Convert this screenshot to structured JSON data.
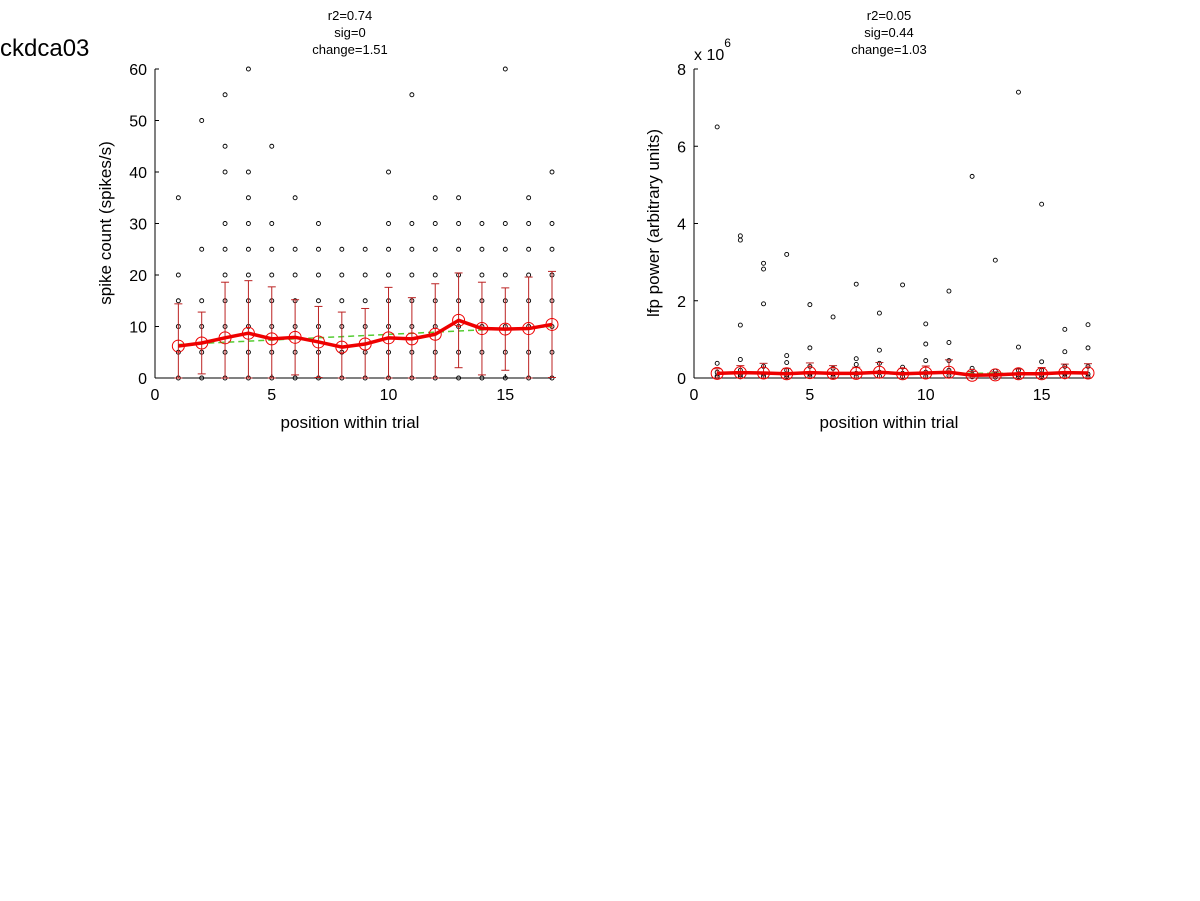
{
  "figure_title": "ckdca03",
  "chart_data": [
    {
      "type": "scatter",
      "stats": {
        "r2": "r2=0.74",
        "sig": "sig=0",
        "change": "change=1.51"
      },
      "xlabel": "position within trial",
      "ylabel": "spike count (spikes/s)",
      "xlim": [
        0,
        17
      ],
      "ylim": [
        0,
        60
      ],
      "xticks": [
        0,
        5,
        10,
        15
      ],
      "yticks": [
        0,
        10,
        20,
        30,
        40,
        50,
        60
      ],
      "scatter_points": [
        [
          1,
          0
        ],
        [
          1,
          5
        ],
        [
          1,
          10
        ],
        [
          1,
          15
        ],
        [
          1,
          20
        ],
        [
          1,
          35
        ],
        [
          2,
          0
        ],
        [
          2,
          5
        ],
        [
          2,
          10
        ],
        [
          2,
          15
        ],
        [
          2,
          25
        ],
        [
          2,
          50
        ],
        [
          3,
          0
        ],
        [
          3,
          5
        ],
        [
          3,
          10
        ],
        [
          3,
          15
        ],
        [
          3,
          20
        ],
        [
          3,
          25
        ],
        [
          3,
          30
        ],
        [
          3,
          40
        ],
        [
          3,
          45
        ],
        [
          3,
          55
        ],
        [
          4,
          0
        ],
        [
          4,
          5
        ],
        [
          4,
          10
        ],
        [
          4,
          15
        ],
        [
          4,
          20
        ],
        [
          4,
          25
        ],
        [
          4,
          30
        ],
        [
          4,
          35
        ],
        [
          4,
          40
        ],
        [
          4,
          60
        ],
        [
          5,
          0
        ],
        [
          5,
          5
        ],
        [
          5,
          10
        ],
        [
          5,
          15
        ],
        [
          5,
          20
        ],
        [
          5,
          25
        ],
        [
          5,
          30
        ],
        [
          5,
          45
        ],
        [
          6,
          0
        ],
        [
          6,
          5
        ],
        [
          6,
          10
        ],
        [
          6,
          15
        ],
        [
          6,
          20
        ],
        [
          6,
          25
        ],
        [
          6,
          35
        ],
        [
          7,
          0
        ],
        [
          7,
          5
        ],
        [
          7,
          10
        ],
        [
          7,
          15
        ],
        [
          7,
          20
        ],
        [
          7,
          25
        ],
        [
          7,
          30
        ],
        [
          8,
          0
        ],
        [
          8,
          5
        ],
        [
          8,
          10
        ],
        [
          8,
          15
        ],
        [
          8,
          20
        ],
        [
          8,
          25
        ],
        [
          9,
          0
        ],
        [
          9,
          5
        ],
        [
          9,
          10
        ],
        [
          9,
          15
        ],
        [
          9,
          20
        ],
        [
          9,
          25
        ],
        [
          10,
          0
        ],
        [
          10,
          5
        ],
        [
          10,
          10
        ],
        [
          10,
          15
        ],
        [
          10,
          20
        ],
        [
          10,
          25
        ],
        [
          10,
          30
        ],
        [
          10,
          40
        ],
        [
          11,
          0
        ],
        [
          11,
          5
        ],
        [
          11,
          10
        ],
        [
          11,
          15
        ],
        [
          11,
          20
        ],
        [
          11,
          25
        ],
        [
          11,
          30
        ],
        [
          11,
          55
        ],
        [
          12,
          0
        ],
        [
          12,
          5
        ],
        [
          12,
          10
        ],
        [
          12,
          15
        ],
        [
          12,
          20
        ],
        [
          12,
          25
        ],
        [
          12,
          30
        ],
        [
          12,
          35
        ],
        [
          13,
          0
        ],
        [
          13,
          5
        ],
        [
          13,
          10
        ],
        [
          13,
          15
        ],
        [
          13,
          20
        ],
        [
          13,
          25
        ],
        [
          13,
          30
        ],
        [
          13,
          35
        ],
        [
          14,
          0
        ],
        [
          14,
          5
        ],
        [
          14,
          10
        ],
        [
          14,
          15
        ],
        [
          14,
          20
        ],
        [
          14,
          25
        ],
        [
          14,
          30
        ],
        [
          15,
          0
        ],
        [
          15,
          5
        ],
        [
          15,
          10
        ],
        [
          15,
          15
        ],
        [
          15,
          20
        ],
        [
          15,
          25
        ],
        [
          15,
          30
        ],
        [
          15,
          60
        ],
        [
          16,
          0
        ],
        [
          16,
          5
        ],
        [
          16,
          10
        ],
        [
          16,
          15
        ],
        [
          16,
          20
        ],
        [
          16,
          25
        ],
        [
          16,
          30
        ],
        [
          16,
          35
        ],
        [
          17,
          0
        ],
        [
          17,
          5
        ],
        [
          17,
          10
        ],
        [
          17,
          15
        ],
        [
          17,
          20
        ],
        [
          17,
          25
        ],
        [
          17,
          30
        ],
        [
          17,
          40
        ]
      ],
      "mean_x": [
        1,
        2,
        3,
        4,
        5,
        6,
        7,
        8,
        9,
        10,
        11,
        12,
        13,
        14,
        15,
        16,
        17
      ],
      "mean_values": [
        6.2,
        6.8,
        7.8,
        8.7,
        7.6,
        7.9,
        7.0,
        6.0,
        6.6,
        7.8,
        7.6,
        8.5,
        11.2,
        9.6,
        9.5,
        9.6,
        10.4
      ],
      "error": [
        8.2,
        6.0,
        10.8,
        10.2,
        10.1,
        7.3,
        6.9,
        6.8,
        6.9,
        9.8,
        8.0,
        9.8,
        9.2,
        9.0,
        8.0,
        10.0,
        10.3
      ],
      "fit_line": [
        [
          1,
          6.5
        ],
        [
          17,
          10.0
        ]
      ],
      "colors": {
        "mean": "#ee0000",
        "error": "#bb2222",
        "fit": "#55cc33",
        "points": "#000000"
      }
    },
    {
      "type": "scatter",
      "stats": {
        "r2": "r2=0.05",
        "sig": "sig=0.44",
        "change": "change=1.03"
      },
      "xlabel": "position within trial",
      "ylabel": "lfp power (arbitrary units)",
      "y_multiplier_base": "x 10",
      "y_multiplier_exp": "6",
      "xlim": [
        0,
        17
      ],
      "ylim": [
        0,
        8
      ],
      "xticks": [
        0,
        5,
        10,
        15
      ],
      "yticks": [
        0,
        2,
        4,
        6,
        8
      ],
      "scatter_points": [
        [
          1,
          6.5
        ],
        [
          1,
          0.38
        ],
        [
          1,
          0.15
        ],
        [
          1,
          0.05
        ],
        [
          1,
          0.02
        ],
        [
          2,
          3.68
        ],
        [
          2,
          3.57
        ],
        [
          2,
          1.37
        ],
        [
          2,
          0.48
        ],
        [
          2,
          0.2
        ],
        [
          2,
          0.08
        ],
        [
          2,
          0.03
        ],
        [
          3,
          2.97
        ],
        [
          3,
          2.82
        ],
        [
          3,
          1.92
        ],
        [
          3,
          0.3
        ],
        [
          3,
          0.1
        ],
        [
          3,
          0.04
        ],
        [
          4,
          3.2
        ],
        [
          4,
          0.58
        ],
        [
          4,
          0.4
        ],
        [
          4,
          0.2
        ],
        [
          4,
          0.08
        ],
        [
          4,
          0.03
        ],
        [
          5,
          1.9
        ],
        [
          5,
          0.78
        ],
        [
          5,
          0.3
        ],
        [
          5,
          0.1
        ],
        [
          5,
          0.04
        ],
        [
          6,
          1.58
        ],
        [
          6,
          0.25
        ],
        [
          6,
          0.1
        ],
        [
          6,
          0.03
        ],
        [
          7,
          2.43
        ],
        [
          7,
          0.5
        ],
        [
          7,
          0.35
        ],
        [
          7,
          0.12
        ],
        [
          7,
          0.04
        ],
        [
          8,
          1.68
        ],
        [
          8,
          0.72
        ],
        [
          8,
          0.38
        ],
        [
          8,
          0.15
        ],
        [
          8,
          0.05
        ],
        [
          9,
          2.41
        ],
        [
          9,
          0.28
        ],
        [
          9,
          0.12
        ],
        [
          9,
          0.03
        ],
        [
          10,
          1.4
        ],
        [
          10,
          0.88
        ],
        [
          10,
          0.45
        ],
        [
          10,
          0.15
        ],
        [
          10,
          0.04
        ],
        [
          11,
          2.25
        ],
        [
          11,
          0.92
        ],
        [
          11,
          0.45
        ],
        [
          11,
          0.2
        ],
        [
          11,
          0.06
        ],
        [
          12,
          5.22
        ],
        [
          12,
          0.25
        ],
        [
          12,
          0.1
        ],
        [
          12,
          0.03
        ],
        [
          13,
          3.05
        ],
        [
          13,
          0.18
        ],
        [
          13,
          0.08
        ],
        [
          13,
          0.02
        ],
        [
          14,
          7.4
        ],
        [
          14,
          0.8
        ],
        [
          14,
          0.2
        ],
        [
          14,
          0.08
        ],
        [
          14,
          0.03
        ],
        [
          15,
          4.5
        ],
        [
          15,
          0.42
        ],
        [
          15,
          0.2
        ],
        [
          15,
          0.08
        ],
        [
          15,
          0.03
        ],
        [
          16,
          1.26
        ],
        [
          16,
          0.68
        ],
        [
          16,
          0.3
        ],
        [
          16,
          0.1
        ],
        [
          16,
          0.03
        ],
        [
          17,
          1.38
        ],
        [
          17,
          0.78
        ],
        [
          17,
          0.3
        ],
        [
          17,
          0.1
        ],
        [
          17,
          0.03
        ]
      ],
      "mean_x": [
        1,
        2,
        3,
        4,
        5,
        6,
        7,
        8,
        9,
        10,
        11,
        12,
        13,
        14,
        15,
        16,
        17
      ],
      "mean_values": [
        0.12,
        0.14,
        0.13,
        0.11,
        0.14,
        0.12,
        0.12,
        0.15,
        0.11,
        0.13,
        0.15,
        0.07,
        0.08,
        0.11,
        0.11,
        0.14,
        0.13
      ],
      "error": [
        0.12,
        0.18,
        0.25,
        0.14,
        0.25,
        0.2,
        0.16,
        0.25,
        0.14,
        0.18,
        0.32,
        0.1,
        0.08,
        0.12,
        0.16,
        0.22,
        0.24
      ],
      "fit_line": [
        [
          1,
          0.13
        ],
        [
          17,
          0.12
        ]
      ],
      "colors": {
        "mean": "#ee0000",
        "error": "#bb2222",
        "fit": "#55cc33",
        "points": "#000000"
      }
    }
  ]
}
